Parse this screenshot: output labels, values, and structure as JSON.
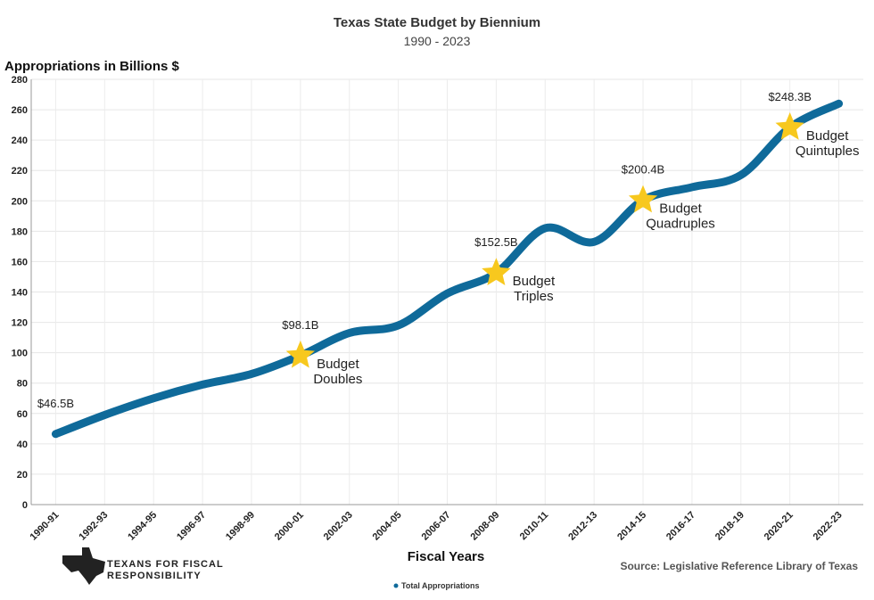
{
  "chart_data": {
    "type": "line",
    "title": "Texas State Budget by Biennium",
    "subtitle": "1990 - 2023",
    "y_label": "Appropriations in Billions $",
    "x_label": "Fiscal Years",
    "source": "Source: Legislative Reference Library of Texas",
    "logo": [
      "TEXANS FOR FISCAL",
      "RESPONSIBILITY"
    ],
    "categories": [
      "1990-91",
      "1992-93",
      "1994-95",
      "1996-97",
      "1998-99",
      "2000-01",
      "2002-03",
      "2004-05",
      "2006-07",
      "2008-09",
      "2010-11",
      "2012-13",
      "2014-15",
      "2016-17",
      "2018-19",
      "2020-21",
      "2022-23"
    ],
    "series": [
      {
        "name": "Total Appropriations",
        "color": "#0f6a9a",
        "values": [
          46.5,
          59,
          70,
          79,
          86,
          98.1,
          113,
          118,
          139,
          152.5,
          182,
          173,
          200.4,
          209,
          217,
          248.3,
          264
        ],
        "value_labels": [
          "$46.5B",
          null,
          null,
          null,
          null,
          "$98.1B",
          null,
          null,
          null,
          "$152.5B",
          null,
          null,
          "$200.4B",
          null,
          null,
          "$248.3B",
          null
        ]
      }
    ],
    "annotations": [
      {
        "x": "2000-01",
        "text": "Budget Doubles"
      },
      {
        "x": "2008-09",
        "text": "Budget Triples"
      },
      {
        "x": "2014-15",
        "text": "Budget Quadruples"
      },
      {
        "x": "2020-21",
        "text": "Budget Quintuples"
      }
    ],
    "marker_color": "#f7c81e",
    "ylim": [
      0,
      280
    ],
    "yticks": [
      0,
      20,
      40,
      60,
      80,
      100,
      120,
      140,
      160,
      180,
      200,
      220,
      240,
      260,
      280
    ],
    "grid": true
  }
}
